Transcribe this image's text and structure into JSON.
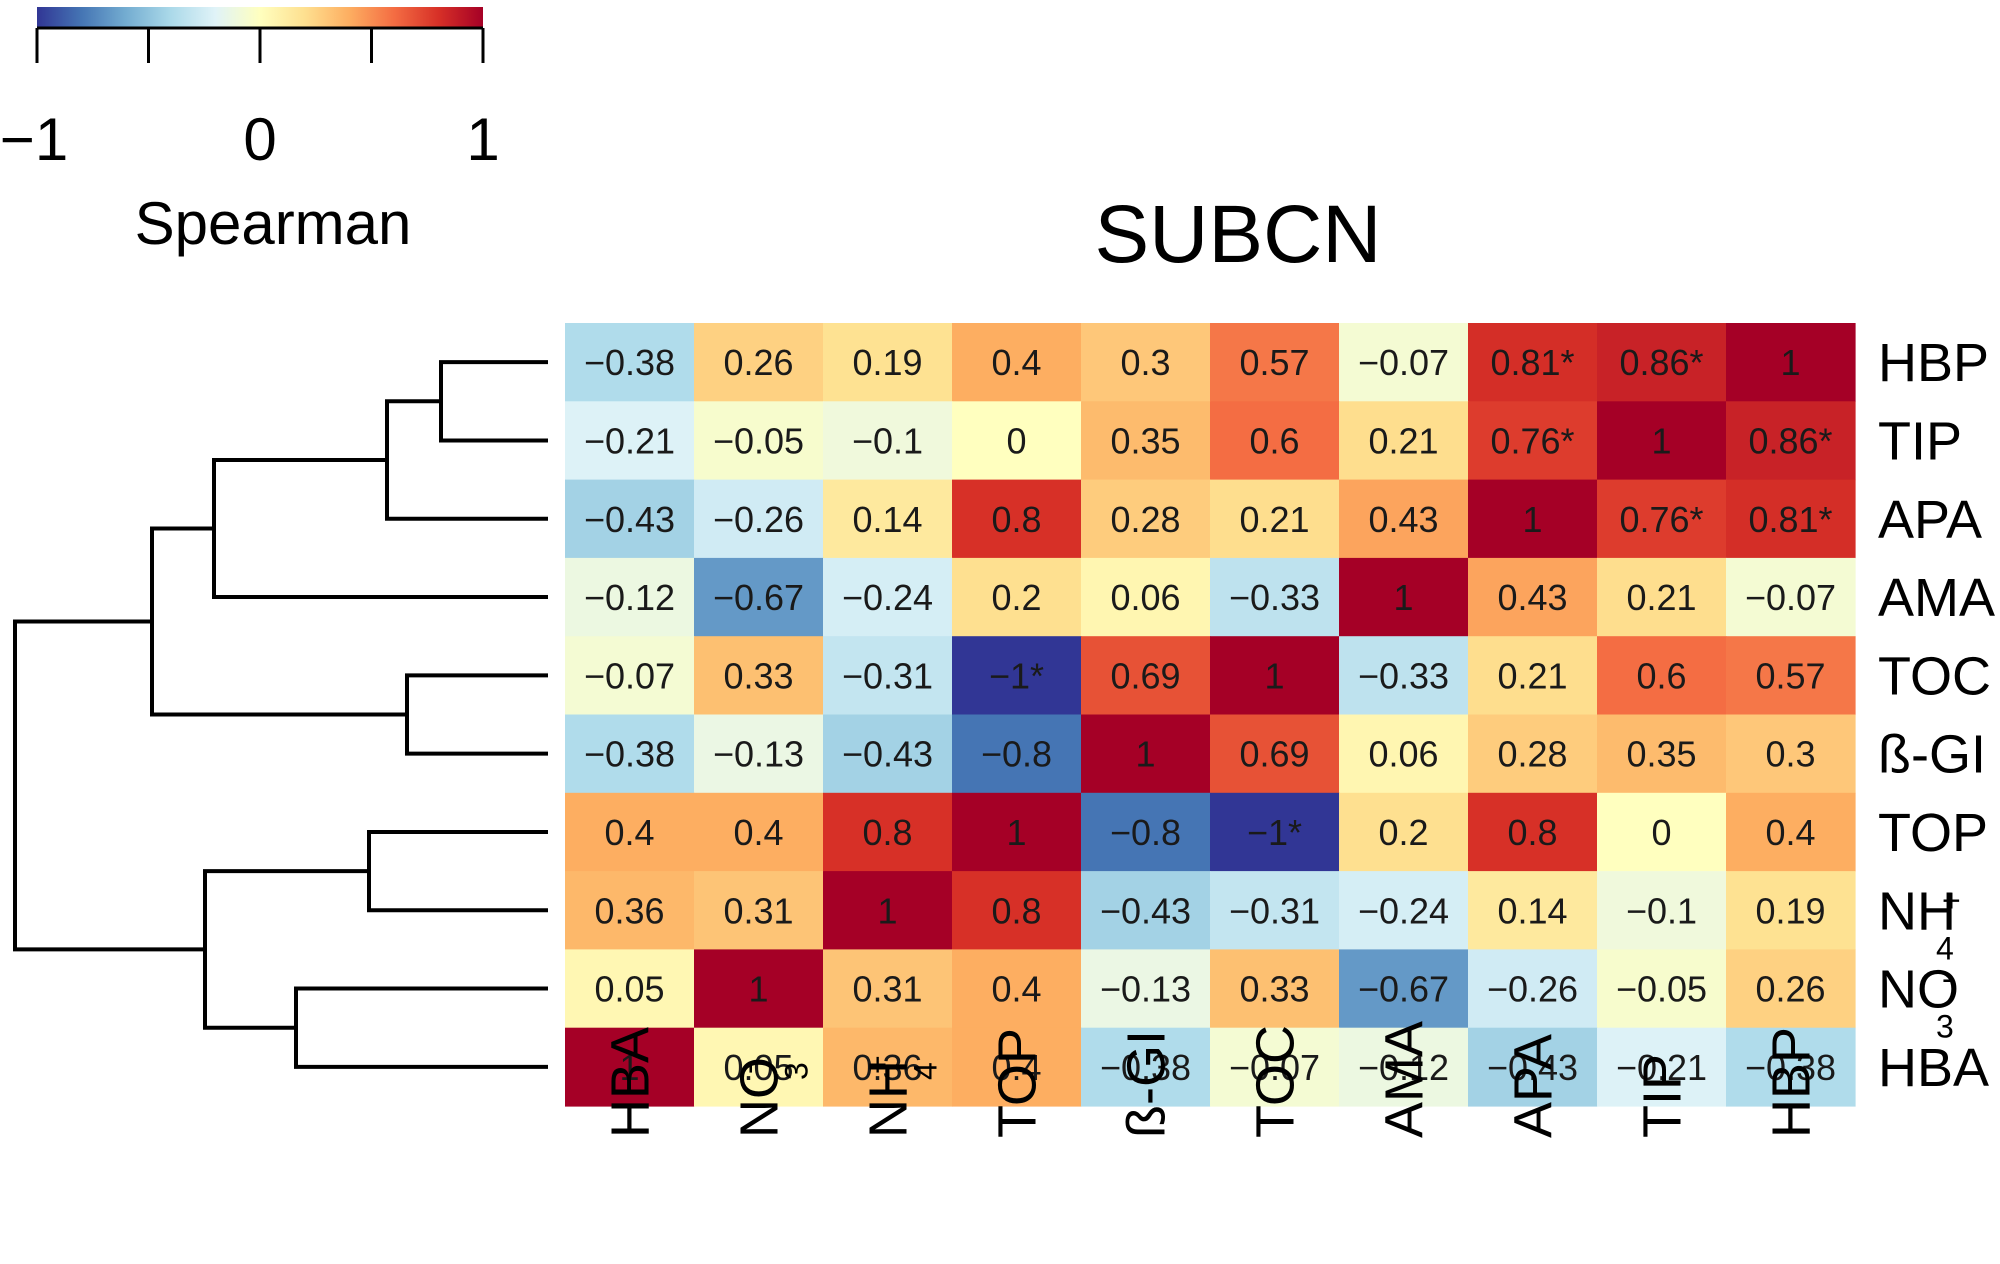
{
  "chart_data": {
    "type": "heatmap",
    "title": "SUBCN",
    "colorbar": {
      "label": "Spearman",
      "range": [
        -1,
        1
      ],
      "tick_labels": [
        "−1",
        "0",
        "1"
      ],
      "stops": [
        "#313695",
        "#4575b4",
        "#74add1",
        "#abd9e9",
        "#e0f3f8",
        "#ffffbf",
        "#fee090",
        "#fdae61",
        "#f46d43",
        "#d73027",
        "#a50026"
      ]
    },
    "row_labels": [
      {
        "base": "HBP",
        "sub": "",
        "sup": ""
      },
      {
        "base": "TIP",
        "sub": "",
        "sup": ""
      },
      {
        "base": "APA",
        "sub": "",
        "sup": ""
      },
      {
        "base": "AMA",
        "sub": "",
        "sup": ""
      },
      {
        "base": "TOC",
        "sub": "",
        "sup": ""
      },
      {
        "base": "ß-GI",
        "sub": "",
        "sup": ""
      },
      {
        "base": "TOP",
        "sub": "",
        "sup": ""
      },
      {
        "base": "NH",
        "sub": "4",
        "sup": "+"
      },
      {
        "base": "NO",
        "sub": "3",
        "sup": "-"
      },
      {
        "base": "HBA",
        "sub": "",
        "sup": ""
      }
    ],
    "col_labels": [
      {
        "base": "HBA",
        "sub": "",
        "sup": ""
      },
      {
        "base": "NO",
        "sub": "3",
        "sup": "-"
      },
      {
        "base": "NH",
        "sub": "4",
        "sup": "+"
      },
      {
        "base": "TOP",
        "sub": "",
        "sup": ""
      },
      {
        "base": "ß-GI",
        "sub": "",
        "sup": ""
      },
      {
        "base": "TOC",
        "sub": "",
        "sup": ""
      },
      {
        "base": "AMA",
        "sub": "",
        "sup": ""
      },
      {
        "base": "APA",
        "sub": "",
        "sup": ""
      },
      {
        "base": "TIP",
        "sub": "",
        "sup": ""
      },
      {
        "base": "HBP",
        "sub": "",
        "sup": ""
      }
    ],
    "values": [
      [
        -0.38,
        0.26,
        0.19,
        0.4,
        0.3,
        0.57,
        -0.07,
        0.81,
        0.86,
        1
      ],
      [
        -0.21,
        -0.05,
        -0.1,
        0,
        0.35,
        0.6,
        0.21,
        0.76,
        1,
        0.86
      ],
      [
        -0.43,
        -0.26,
        0.14,
        0.8,
        0.28,
        0.21,
        0.43,
        1,
        0.76,
        0.81
      ],
      [
        -0.12,
        -0.67,
        -0.24,
        0.2,
        0.06,
        -0.33,
        1,
        0.43,
        0.21,
        -0.07
      ],
      [
        -0.07,
        0.33,
        -0.31,
        -1,
        0.69,
        1,
        -0.33,
        0.21,
        0.6,
        0.57
      ],
      [
        -0.38,
        -0.13,
        -0.43,
        -0.8,
        1,
        0.69,
        0.06,
        0.28,
        0.35,
        0.3
      ],
      [
        0.4,
        0.4,
        0.8,
        1,
        -0.8,
        -1,
        0.2,
        0.8,
        0,
        0.4
      ],
      [
        0.36,
        0.31,
        1,
        0.8,
        -0.43,
        -0.31,
        -0.24,
        0.14,
        -0.1,
        0.19
      ],
      [
        0.05,
        1,
        0.31,
        0.4,
        -0.13,
        0.33,
        -0.67,
        -0.26,
        -0.05,
        0.26
      ],
      [
        1,
        0.05,
        0.36,
        0.4,
        -0.38,
        -0.07,
        -0.12,
        -0.43,
        -0.21,
        -0.38
      ]
    ],
    "cell_labels": [
      [
        "−0.38",
        "0.26",
        "0.19",
        "0.4",
        "0.3",
        "0.57",
        "−0.07",
        "0.81*",
        "0.86*",
        "1"
      ],
      [
        "−0.21",
        "−0.05",
        "−0.1",
        "0",
        "0.35",
        "0.6",
        "0.21",
        "0.76*",
        "1",
        "0.86*"
      ],
      [
        "−0.43",
        "−0.26",
        "0.14",
        "0.8",
        "0.28",
        "0.21",
        "0.43",
        "1",
        "0.76*",
        "0.81*"
      ],
      [
        "−0.12",
        "−0.67",
        "−0.24",
        "0.2",
        "0.06",
        "−0.33",
        "1",
        "0.43",
        "0.21",
        "−0.07"
      ],
      [
        "−0.07",
        "0.33",
        "−0.31",
        "−1*",
        "0.69",
        "1",
        "−0.33",
        "0.21",
        "0.6",
        "0.57"
      ],
      [
        "−0.38",
        "−0.13",
        "−0.43",
        "−0.8",
        "1",
        "0.69",
        "0.06",
        "0.28",
        "0.35",
        "0.3"
      ],
      [
        "0.4",
        "0.4",
        "0.8",
        "1",
        "−0.8",
        "−1*",
        "0.2",
        "0.8",
        "0",
        "0.4"
      ],
      [
        "0.36",
        "0.31",
        "1",
        "0.8",
        "−0.43",
        "−0.31",
        "−0.24",
        "0.14",
        "−0.1",
        "0.19"
      ],
      [
        "0.05",
        "1",
        "0.31",
        "0.4",
        "−0.13",
        "0.33",
        "−0.67",
        "−0.26",
        "−0.05",
        "0.26"
      ],
      [
        "1",
        "0.05",
        "0.36",
        "0.4",
        "−0.38",
        "−0.07",
        "−0.12",
        "−0.43",
        "−0.21",
        "−0.38"
      ]
    ],
    "significance_marker": "*",
    "dendrogram": {
      "side": "left",
      "leaf_order": [
        "HBP",
        "TIP",
        "APA",
        "AMA",
        "TOC",
        "ß-GI",
        "TOP",
        "NH4+",
        "NO3-",
        "HBA"
      ]
    }
  }
}
